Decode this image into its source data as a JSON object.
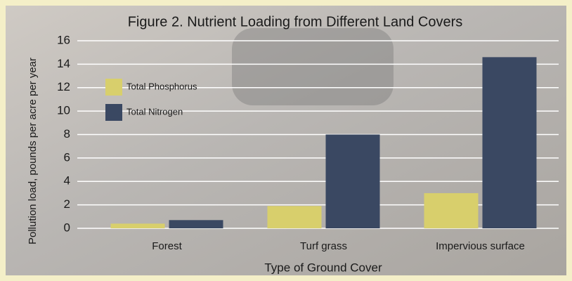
{
  "chart_data": {
    "type": "bar",
    "title": "Figure 2. Nutrient Loading from Different Land Covers",
    "x_label": "Type of Ground Cover",
    "y_label": "Pollution load, pounds per acre per year",
    "categories": [
      "Forest",
      "Turf grass",
      "Impervious surface"
    ],
    "series": [
      {
        "name": "Total Phosphorus",
        "color": "#d8cf6c",
        "values": [
          0.4,
          1.9,
          3
        ]
      },
      {
        "name": "Total Nitrogen",
        "color": "#3a4862",
        "values": [
          0.7,
          8,
          14.6
        ]
      }
    ],
    "ylim": [
      0,
      16
    ],
    "yticks": [
      0,
      2,
      4,
      6,
      8,
      10,
      12,
      14,
      16
    ],
    "grid": true,
    "legend": "upper left"
  }
}
